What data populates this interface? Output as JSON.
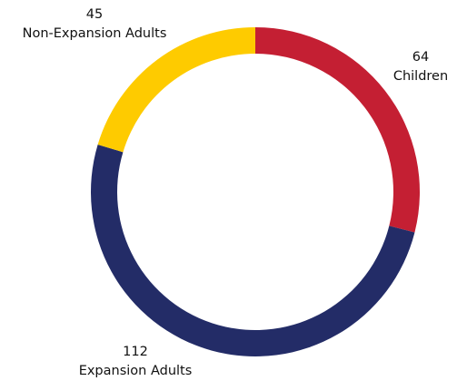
{
  "chart_data": {
    "type": "pie",
    "variant": "donut",
    "title": "",
    "slices": [
      {
        "label": "Children",
        "value": 64,
        "color": "#c41f33"
      },
      {
        "label": "Expansion Adults",
        "value": 112,
        "color": "#232c67"
      },
      {
        "label": "Non-Expansion Adults",
        "value": 45,
        "color": "#fecb00"
      }
    ],
    "start": "top",
    "direction": "clockwise",
    "legend": "none"
  }
}
